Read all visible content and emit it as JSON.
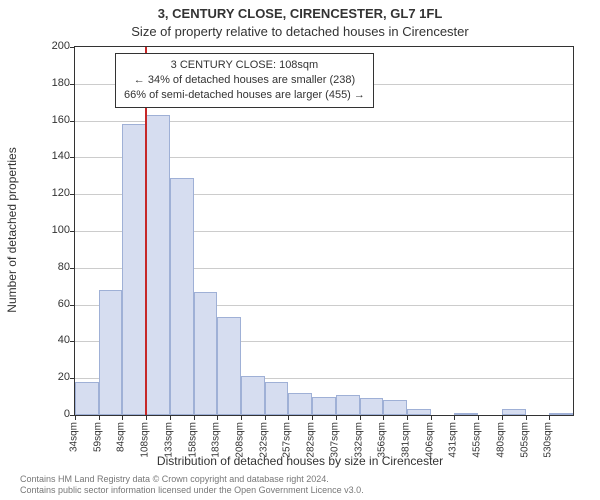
{
  "title_address": "3, CENTURY CLOSE, CIRENCESTER, GL7 1FL",
  "title_sub": "Size of property relative to detached houses in Cirencester",
  "ylabel": "Number of detached properties",
  "xlabel": "Distribution of detached houses by size in Cirencester",
  "footer_line1": "Contains HM Land Registry data © Crown copyright and database right 2024.",
  "footer_line2": "Contains public sector information licensed under the Open Government Licence v3.0.",
  "annotation": {
    "line1": "3 CENTURY CLOSE: 108sqm",
    "line2": "← 34% of detached houses are smaller (238)",
    "line3": "66% of semi-detached houses are larger (455) →"
  },
  "chart": {
    "type": "histogram",
    "ylim": [
      0,
      200
    ],
    "ytick_step": 20,
    "background_color": "#ffffff",
    "grid_color": "#cccccc",
    "bar_fill_color": "#d6ddf0",
    "bar_border_color": "#9fb0d6",
    "axis_color": "#333333",
    "marker_color": "#c62828",
    "marker_x_value": 108,
    "series": {
      "x_labels": [
        "34sqm",
        "59sqm",
        "84sqm",
        "108sqm",
        "133sqm",
        "158sqm",
        "183sqm",
        "208sqm",
        "232sqm",
        "257sqm",
        "282sqm",
        "307sqm",
        "332sqm",
        "356sqm",
        "381sqm",
        "406sqm",
        "431sqm",
        "455sqm",
        "480sqm",
        "505sqm",
        "530sqm"
      ],
      "values": [
        18,
        68,
        158,
        163,
        129,
        67,
        53,
        21,
        18,
        12,
        10,
        11,
        9,
        8,
        3,
        0,
        1,
        0,
        3,
        0,
        1
      ]
    },
    "fontsize": {
      "title": 13,
      "label": 12,
      "tick": 11,
      "annotation": 11
    }
  }
}
